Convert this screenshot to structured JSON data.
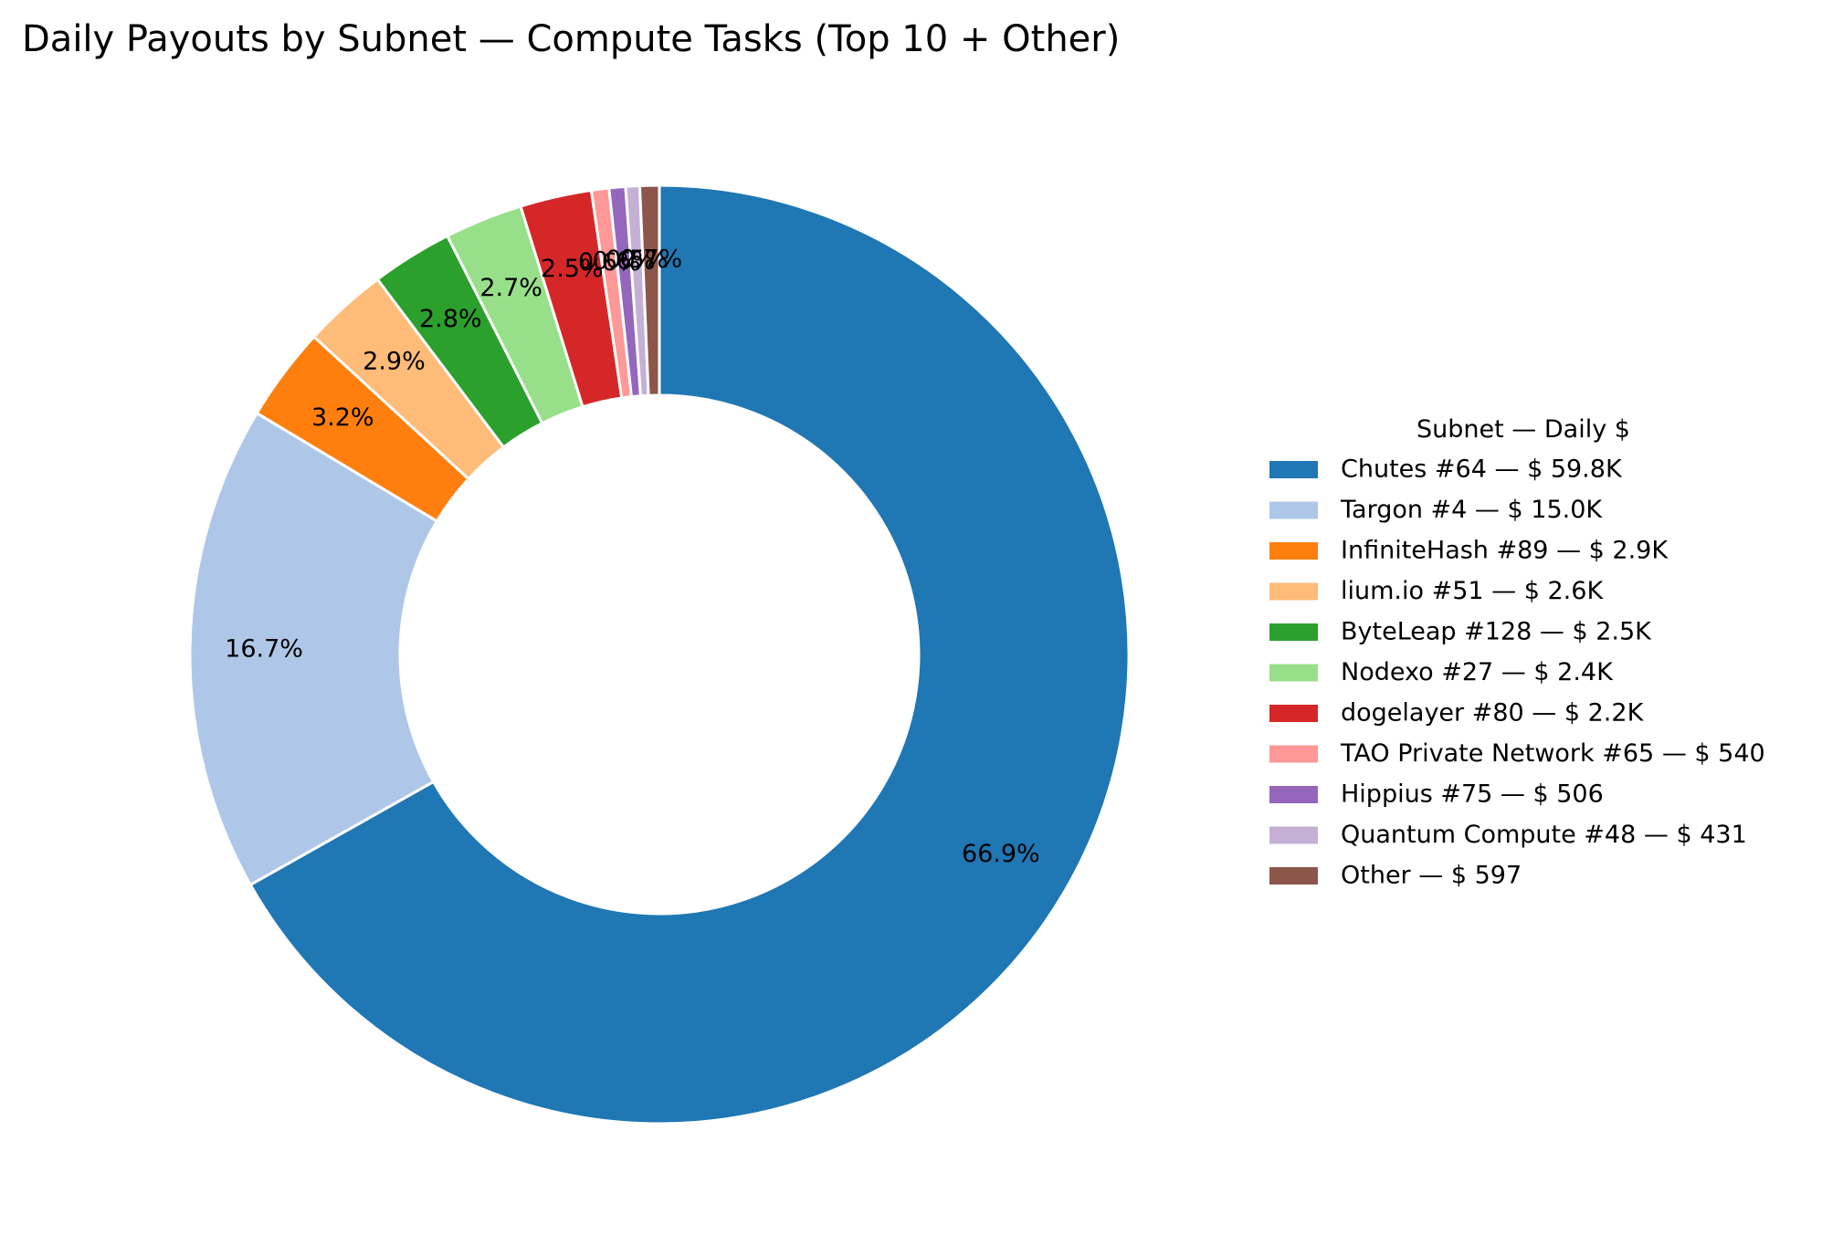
{
  "chart_data": {
    "type": "pie",
    "donut": true,
    "title": "Daily Payouts by Subnet — Compute Tasks (Top 10 + Other)",
    "legend_title": "Subnet — Daily $",
    "legend_position": "right",
    "slices": [
      {
        "name": "Chutes #64",
        "legend_label": "Chutes #64 — $ 59.8K",
        "value": 59800,
        "pct_label": "66.9%",
        "color": "#1f77b4"
      },
      {
        "name": "Targon #4",
        "legend_label": "Targon #4 — $ 15.0K",
        "value": 15000,
        "pct_label": "16.7%",
        "color": "#aec7e8"
      },
      {
        "name": "InfiniteHash #89",
        "legend_label": "InfiniteHash #89 — $ 2.9K",
        "value": 2900,
        "pct_label": "3.2%",
        "color": "#ff7f0e"
      },
      {
        "name": "lium.io #51",
        "legend_label": "lium.io #51 — $ 2.6K",
        "value": 2600,
        "pct_label": "2.9%",
        "color": "#ffbb78"
      },
      {
        "name": "ByteLeap #128",
        "legend_label": "ByteLeap #128 — $ 2.5K",
        "value": 2500,
        "pct_label": "2.8%",
        "color": "#2ca02c"
      },
      {
        "name": "Nodexo #27",
        "legend_label": "Nodexo #27 — $ 2.4K",
        "value": 2400,
        "pct_label": "2.7%",
        "color": "#98df8a"
      },
      {
        "name": "dogelayer #80",
        "legend_label": "dogelayer #80 — $ 2.2K",
        "value": 2200,
        "pct_label": "2.5%",
        "color": "#d62728"
      },
      {
        "name": "TAO Private Network #65",
        "legend_label": "TAO Private Network #65 — $ 540",
        "value": 540,
        "pct_label": "0.6%",
        "color": "#ff9896"
      },
      {
        "name": "Hippius #75",
        "legend_label": "Hippius #75 — $ 506",
        "value": 506,
        "pct_label": "0.6%",
        "color": "#9467bd"
      },
      {
        "name": "Quantum Compute #48",
        "legend_label": "Quantum Compute #48 — $ 431",
        "value": 431,
        "pct_label": "0.5%",
        "color": "#c5b0d5"
      },
      {
        "name": "Other",
        "legend_label": "Other — $ 597",
        "value": 597,
        "pct_label": "0.7%",
        "color": "#8c564b"
      }
    ]
  }
}
